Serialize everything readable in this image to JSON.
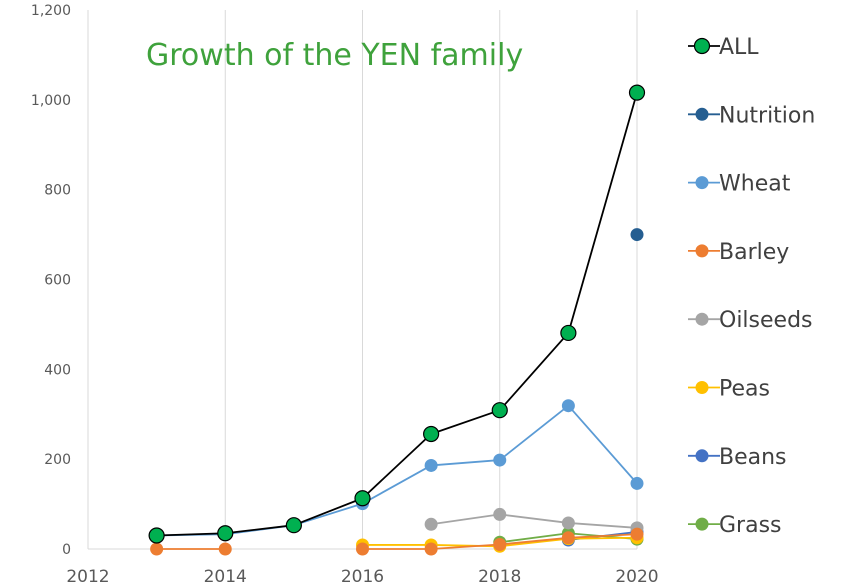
{
  "chart_data": {
    "type": "line",
    "title": "Growth of the YEN family",
    "xlabel": "",
    "ylabel": "",
    "xlim": [
      2012,
      2020
    ],
    "ylim": [
      0,
      1200
    ],
    "x_ticks": [
      {
        "value": 2012,
        "label": "2012"
      },
      {
        "value": 2014,
        "label": "2014"
      },
      {
        "value": 2016,
        "label": "2016"
      },
      {
        "value": 2018,
        "label": "2018"
      },
      {
        "value": 2020,
        "label": "2020"
      }
    ],
    "y_ticks": [
      {
        "value": 0,
        "label": "0"
      },
      {
        "value": 200,
        "label": "200"
      },
      {
        "value": 400,
        "label": "400"
      },
      {
        "value": 600,
        "label": "600"
      },
      {
        "value": 800,
        "label": "800"
      },
      {
        "value": 1000,
        "label": "1,000"
      },
      {
        "value": 1200,
        "label": "1,200"
      }
    ],
    "grid": "vertical",
    "legend_position": "right",
    "series": [
      {
        "name": "ALL",
        "color": "#00b050",
        "line_color": "#000000",
        "marker_outline": "#000000",
        "points": [
          [
            2013,
            30
          ],
          [
            2014,
            35
          ],
          [
            2015,
            53
          ],
          [
            2016,
            113
          ],
          [
            2017,
            256
          ],
          [
            2018,
            309
          ],
          [
            2019,
            481
          ],
          [
            2020,
            1016
          ]
        ]
      },
      {
        "name": "Nutrition",
        "color": "#255e91",
        "line_color": "#255e91",
        "points": [
          [
            2020,
            700
          ]
        ]
      },
      {
        "name": "Wheat",
        "color": "#5b9bd5",
        "line_color": "#5b9bd5",
        "points": [
          [
            2013,
            30
          ],
          [
            2014,
            33
          ],
          [
            2015,
            53
          ],
          [
            2016,
            101
          ],
          [
            2017,
            186
          ],
          [
            2018,
            198
          ],
          [
            2019,
            319
          ],
          [
            2020,
            146
          ]
        ]
      },
      {
        "name": "Barley",
        "color": "#ed7d31",
        "line_color": "#ed7d31",
        "points": [
          [
            2013,
            0
          ],
          [
            2014,
            0
          ],
          [
            2016,
            0
          ],
          [
            2017,
            0
          ],
          [
            2018,
            10
          ],
          [
            2019,
            25
          ],
          [
            2020,
            33
          ]
        ]
      },
      {
        "name": "Oilseeds",
        "color": "#a5a5a5",
        "line_color": "#a5a5a5",
        "points": [
          [
            2017,
            55
          ],
          [
            2018,
            77
          ],
          [
            2019,
            58
          ],
          [
            2020,
            47
          ]
        ]
      },
      {
        "name": "Peas",
        "color": "#ffc000",
        "line_color": "#ffc000",
        "points": [
          [
            2016,
            9
          ],
          [
            2017,
            9
          ],
          [
            2018,
            6
          ],
          [
            2019,
            23
          ],
          [
            2020,
            25
          ]
        ]
      },
      {
        "name": "Beans",
        "color": "#4472c4",
        "line_color": "#4472c4",
        "points": [
          [
            2019,
            20
          ],
          [
            2020,
            38
          ]
        ]
      },
      {
        "name": "Grass",
        "color": "#70ad47",
        "line_color": "#70ad47",
        "points": [
          [
            2018,
            15
          ],
          [
            2019,
            35
          ],
          [
            2020,
            22
          ]
        ]
      }
    ]
  }
}
